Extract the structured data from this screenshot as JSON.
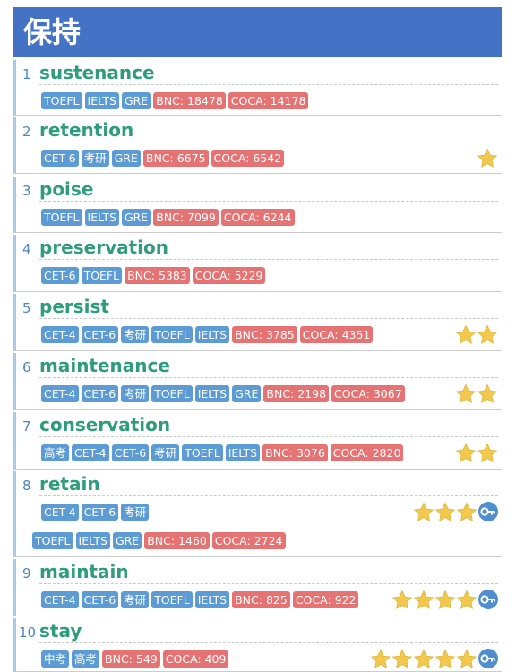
{
  "page": {
    "title": "保持"
  },
  "colors": {
    "header": "#4472c4",
    "word": "#2e9c7d",
    "exam_tag": "#5d9bd5",
    "freq_tag": "#e57373",
    "star": "#f2c94c"
  },
  "entries": [
    {
      "num": "1",
      "word": "sustenance",
      "tags": [
        "TOEFL",
        "IELTS",
        "GRE"
      ],
      "bnc": "BNC: 18478",
      "coca": "COCA: 14178",
      "stars": 0,
      "key": false
    },
    {
      "num": "2",
      "word": "retention",
      "tags": [
        "CET-6",
        "考研",
        "GRE"
      ],
      "bnc": "BNC: 6675",
      "coca": "COCA: 6542",
      "stars": 1,
      "key": false
    },
    {
      "num": "3",
      "word": "poise",
      "tags": [
        "TOEFL",
        "IELTS",
        "GRE"
      ],
      "bnc": "BNC: 7099",
      "coca": "COCA: 6244",
      "stars": 0,
      "key": false
    },
    {
      "num": "4",
      "word": "preservation",
      "tags": [
        "CET-6",
        "TOEFL"
      ],
      "bnc": "BNC: 5383",
      "coca": "COCA: 5229",
      "stars": 0,
      "key": false
    },
    {
      "num": "5",
      "word": "persist",
      "tags": [
        "CET-4",
        "CET-6",
        "考研",
        "TOEFL",
        "IELTS"
      ],
      "bnc": "BNC: 3785",
      "coca": "COCA: 4351",
      "stars": 2,
      "key": false
    },
    {
      "num": "6",
      "word": "maintenance",
      "tags": [
        "CET-4",
        "CET-6",
        "考研",
        "TOEFL",
        "IELTS",
        "GRE"
      ],
      "bnc": "BNC: 2198",
      "coca": "COCA: 3067",
      "stars": 2,
      "key": false
    },
    {
      "num": "7",
      "word": "conservation",
      "tags": [
        "高考",
        "CET-4",
        "CET-6",
        "考研",
        "TOEFL",
        "IELTS"
      ],
      "bnc": "BNC: 3076",
      "coca": "COCA: 2820",
      "stars": 2,
      "key": false
    },
    {
      "num": "8",
      "word": "retain",
      "tags": [
        "CET-4",
        "CET-6",
        "考研"
      ],
      "tags2": [
        "TOEFL",
        "IELTS",
        "GRE"
      ],
      "bnc": "BNC: 1460",
      "coca": "COCA: 2724",
      "stars": 3,
      "key": true
    },
    {
      "num": "9",
      "word": "maintain",
      "tags": [
        "CET-4",
        "CET-6",
        "考研",
        "TOEFL",
        "IELTS"
      ],
      "bnc": "BNC: 825",
      "coca": "COCA: 922",
      "stars": 4,
      "key": true
    },
    {
      "num": "10",
      "word": "stay",
      "tags": [
        "中考",
        "高考"
      ],
      "bnc": "BNC: 549",
      "coca": "COCA: 409",
      "stars": 5,
      "key": true
    }
  ]
}
